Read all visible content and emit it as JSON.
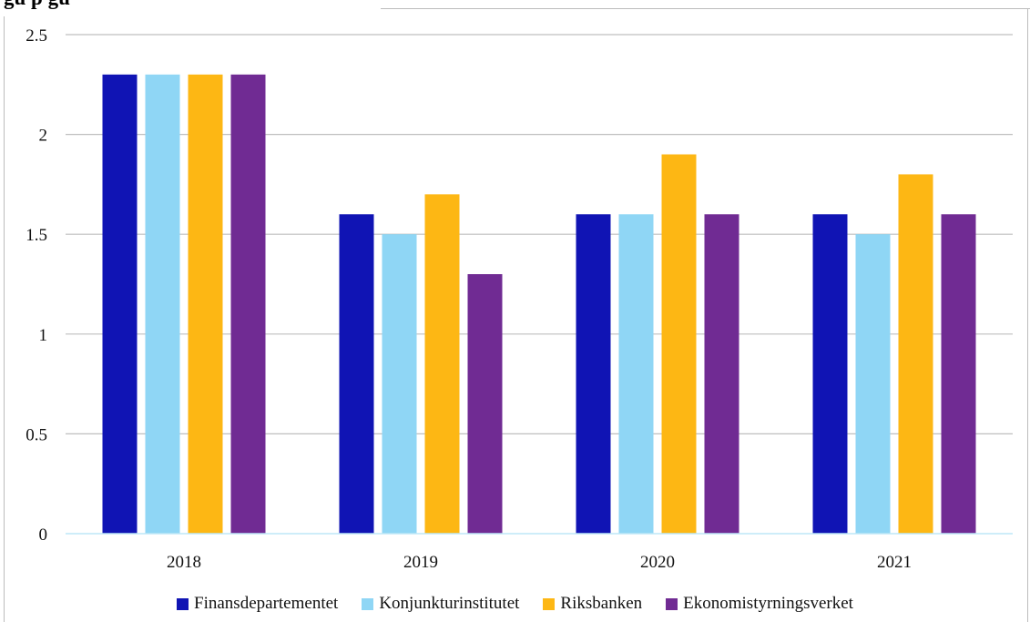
{
  "header": {
    "title_fragment": "gu                              p gu"
  },
  "chart_data": {
    "type": "bar",
    "title": "",
    "xlabel": "",
    "ylabel": "",
    "categories": [
      "2018",
      "2019",
      "2020",
      "2021"
    ],
    "ylim": [
      0,
      2.5
    ],
    "yticks": [
      0,
      0.5,
      1,
      1.5,
      2,
      2.5
    ],
    "ytick_labels": [
      "0",
      "0.5",
      "1",
      "1.5",
      "2",
      "2.5"
    ],
    "grid": true,
    "legend_position": "bottom",
    "series": [
      {
        "name": "Finansdepartementet",
        "color": "#1014b4",
        "values": [
          2.3,
          1.6,
          1.6,
          1.6
        ]
      },
      {
        "name": "Konjunkturinstitutet",
        "color": "#8fd6f5",
        "values": [
          2.3,
          1.5,
          1.6,
          1.5
        ]
      },
      {
        "name": "Riksbanken",
        "color": "#fdb714",
        "values": [
          2.3,
          1.7,
          1.9,
          1.8
        ]
      },
      {
        "name": "Ekonomistyrningsverket",
        "color": "#702b93",
        "values": [
          2.3,
          1.3,
          1.6,
          1.6
        ]
      }
    ]
  }
}
